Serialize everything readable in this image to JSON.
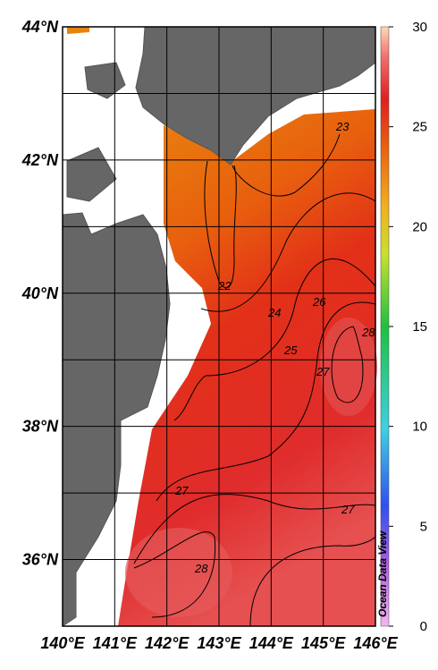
{
  "map": {
    "lon_range": [
      140,
      146
    ],
    "lat_range": [
      35,
      44
    ],
    "lon_ticks": [
      {
        "value": 140,
        "label": "140°E"
      },
      {
        "value": 141,
        "label": "141°E"
      },
      {
        "value": 142,
        "label": "142°E"
      },
      {
        "value": 143,
        "label": "143°E"
      },
      {
        "value": 144,
        "label": "144°E"
      },
      {
        "value": 145,
        "label": "145°E"
      },
      {
        "value": 146,
        "label": "146°E"
      }
    ],
    "lat_ticks": [
      {
        "value": 36,
        "label": "36°N"
      },
      {
        "value": 38,
        "label": "38°N"
      },
      {
        "value": 40,
        "label": "40°N"
      },
      {
        "value": 42,
        "label": "42°N"
      },
      {
        "value": 44,
        "label": "44°N"
      }
    ],
    "colorbar": {
      "range": [
        0,
        30
      ],
      "ticks": [
        0,
        5,
        10,
        15,
        20,
        25,
        30
      ]
    },
    "contour_labels": [
      23,
      22,
      24,
      25,
      26,
      28,
      27,
      27,
      27,
      28
    ],
    "credit": "Ocean Data View"
  }
}
